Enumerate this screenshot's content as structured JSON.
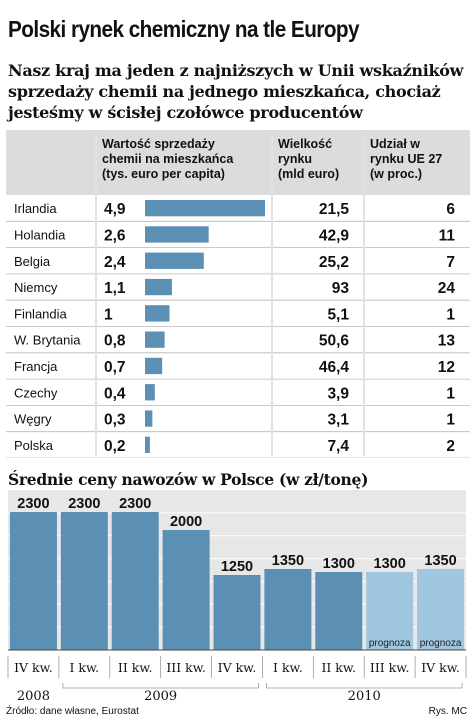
{
  "title": "Polski rynek chemiczny na tle Europy",
  "subtitle": "Nasz kraj ma jeden z najniższych w Unii wskaźników sprzedaży chemii na jednego mieszkańca, chociaż jesteśmy w ścisłej czołówce producentów",
  "source": "Źródło: dane własne, Eurostat",
  "credit": "Rys. MC",
  "colors": {
    "bar": "#5b8fb4",
    "forecast_bar": "#9ec6e0",
    "header_bg": "#dcdcdc",
    "panel_bg": "#e7e7e7"
  },
  "chart_data": [
    {
      "type": "table",
      "columns": [
        "",
        "Wartość sprzedaży chemii na mieszkańca (tys. euro per capita)",
        "Wielkość rynku (mld euro)",
        "Udział w rynku UE 27 (w proc.)"
      ],
      "column_lines": [
        [
          "Wartość sprzedaży",
          "chemii na mieszkańca",
          "(tys. euro per capita)"
        ],
        [
          "Wielkość",
          "rynku",
          "(mld euro)"
        ],
        [
          "Udział w",
          "rynku UE 27",
          "(w proc.)"
        ]
      ],
      "rows": [
        {
          "country": "Irlandia",
          "per_capita": "4,9",
          "value": 4.9,
          "market": "21,5",
          "share": "6"
        },
        {
          "country": "Holandia",
          "per_capita": "2,6",
          "value": 2.6,
          "market": "42,9",
          "share": "11"
        },
        {
          "country": "Belgia",
          "per_capita": "2,4",
          "value": 2.4,
          "market": "25,2",
          "share": "7"
        },
        {
          "country": "Niemcy",
          "per_capita": "1,1",
          "value": 1.1,
          "market": "93",
          "share": "24"
        },
        {
          "country": "Finlandia",
          "per_capita": "1",
          "value": 1.0,
          "market": "5,1",
          "share": "1"
        },
        {
          "country": "W. Brytania",
          "per_capita": "0,8",
          "value": 0.8,
          "market": "50,6",
          "share": "13"
        },
        {
          "country": "Francja",
          "per_capita": "0,7",
          "value": 0.7,
          "market": "46,4",
          "share": "12"
        },
        {
          "country": "Czechy",
          "per_capita": "0,4",
          "value": 0.4,
          "market": "3,9",
          "share": "1"
        },
        {
          "country": "Węgry",
          "per_capita": "0,3",
          "value": 0.3,
          "market": "3,1",
          "share": "1"
        },
        {
          "country": "Polska",
          "per_capita": "0,2",
          "value": 0.2,
          "market": "7,4",
          "share": "2"
        }
      ]
    },
    {
      "type": "bar",
      "title": "Średnie ceny nawozów w Polsce (w zł/tonę)",
      "categories": [
        "IV kw.",
        "I kw.",
        "II kw.",
        "III kw.",
        "IV kw.",
        "I kw.",
        "II kw.",
        "III kw.",
        "IV kw."
      ],
      "values": [
        2300,
        2300,
        2300,
        2000,
        1250,
        1350,
        1300,
        1300,
        1350
      ],
      "value_labels": [
        "2300",
        "2300",
        "2300",
        "2000",
        "1250",
        "1350",
        "1300",
        "1300",
        "1350"
      ],
      "forecast": [
        false,
        false,
        false,
        false,
        false,
        false,
        false,
        true,
        true
      ],
      "forecast_label": "prognoza",
      "years": [
        {
          "label": "2008",
          "from": 0,
          "to": 0
        },
        {
          "label": "2009",
          "from": 1,
          "to": 4
        },
        {
          "label": "2010",
          "from": 5,
          "to": 8
        }
      ],
      "ylim": [
        0,
        2300
      ],
      "grid": true
    }
  ]
}
